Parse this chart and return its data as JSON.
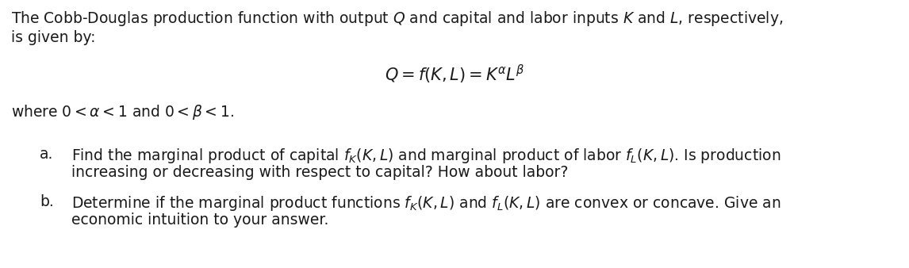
{
  "background_color": "#ffffff",
  "figsize": [
    11.46,
    3.38
  ],
  "dpi": 100,
  "line1": "The Cobb-Douglas production function with output $Q$ and capital and labor inputs $K$ and $L$, respectively,",
  "line2": "is given by:",
  "formula": "$Q = f(K, L) = K^{\\alpha}L^{\\beta}$",
  "line3": "where $0 < \\alpha < 1$ and $0 < \\beta < 1$.",
  "item_a_label": "a.",
  "item_a_line1": "Find the marginal product of capital $f_K(K, L)$ and marginal product of labor $f_L(K, L)$. Is production",
  "item_a_line2": "increasing or decreasing with respect to capital? How about labor?",
  "item_b_label": "b.",
  "item_b_line1": "Determine if the marginal product functions $f_K(K, L)$ and $f_L(K, L)$ are convex or concave. Give an",
  "item_b_line2": "economic intuition to your answer.",
  "font_size_main": 13.5,
  "font_size_formula": 15,
  "text_color": "#1a1a1a"
}
